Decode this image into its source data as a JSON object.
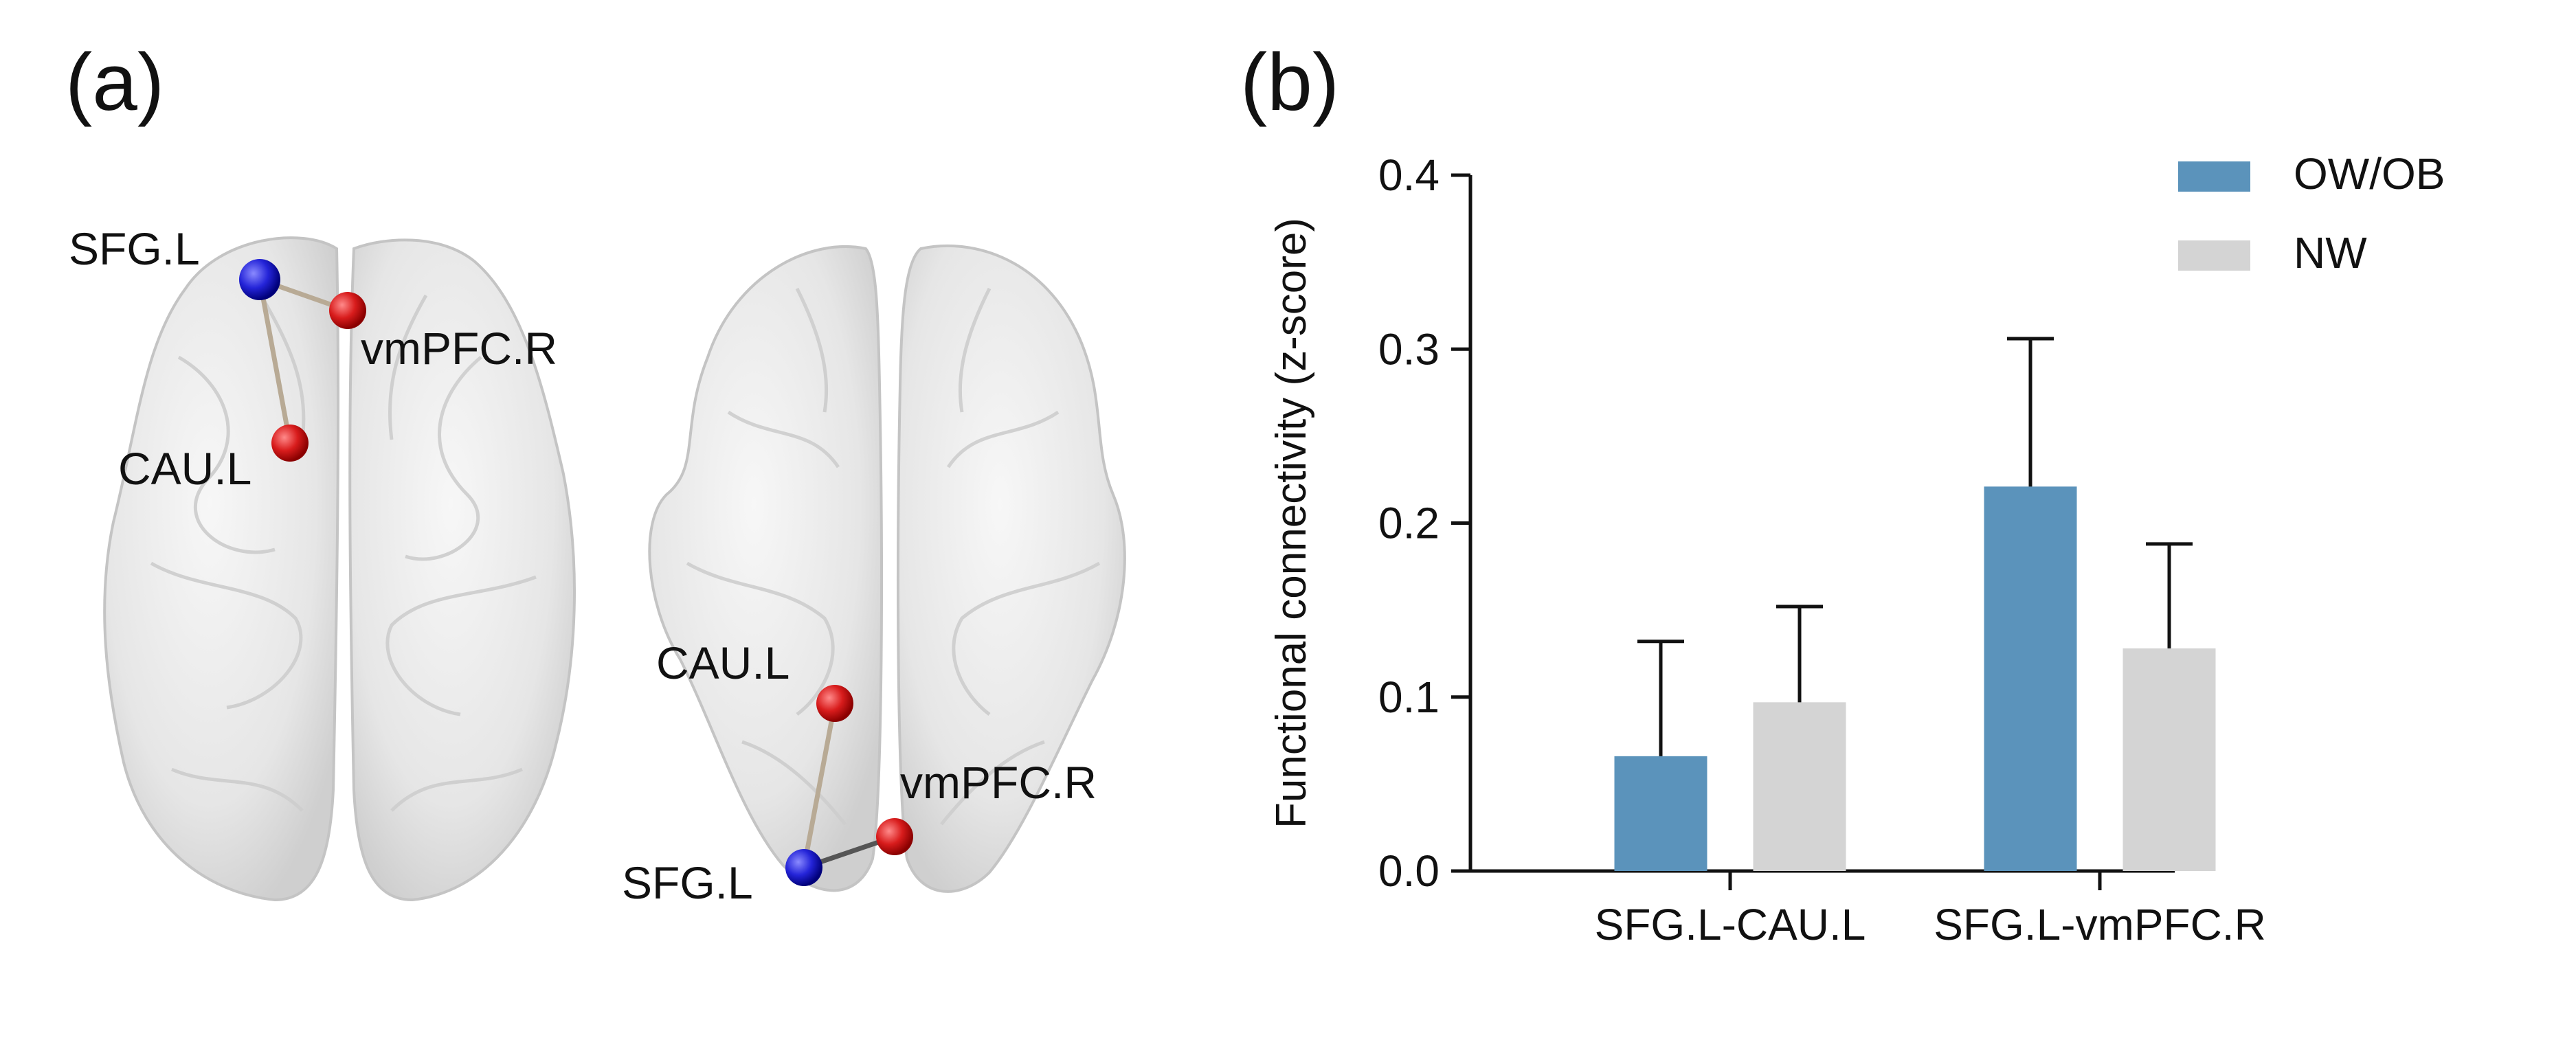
{
  "panel_a": {
    "label": "(a)",
    "view1": {
      "nodes": [
        "SFG.L",
        "vmPFC.R",
        "CAU.L"
      ]
    },
    "view2": {
      "nodes": [
        "CAU.L",
        "vmPFC.R",
        "SFG.L"
      ]
    },
    "colors": {
      "node_seed": "#2424d8",
      "node_target": "#d81c1c",
      "edge": "#b8aa95",
      "brain": "#e6e6e6"
    }
  },
  "panel_b": {
    "label": "(b)"
  },
  "chart_data": {
    "type": "bar",
    "categories": [
      "SFG.L-CAU.L",
      "SFG.L-vmPFC.R"
    ],
    "series": [
      {
        "name": "OW/OB",
        "values": [
          0.066,
          0.221
        ],
        "errors": [
          0.066,
          0.085
        ],
        "color": "#5b93bb"
      },
      {
        "name": "NW",
        "values": [
          0.097,
          0.128
        ],
        "errors": [
          0.055,
          0.06
        ],
        "color": "#d4d4d4"
      }
    ],
    "ylabel": "Functional connectivity (z-score)",
    "ylim": [
      0,
      0.4
    ],
    "yticks": [
      0.0,
      0.1,
      0.2,
      0.3,
      0.4
    ],
    "ytick_labels": [
      "0.0",
      "0.1",
      "0.2",
      "0.3",
      "0.4"
    ],
    "legend_position": "top-right",
    "grid": false
  }
}
